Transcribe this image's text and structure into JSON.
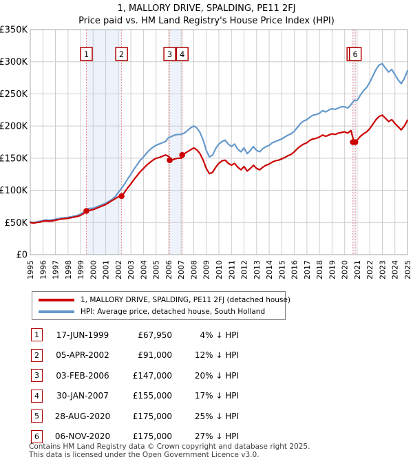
{
  "page": {
    "title": "1, MALLORY DRIVE, SPALDING, PE11 2FJ",
    "subtitle": "Price paid vs. HM Land Registry's House Price Index (HPI)",
    "footer_line1": "Contains HM Land Registry data © Crown copyright and database right 2025.",
    "footer_line2": "This data is licensed under the Open Government Licence v3.0."
  },
  "legend": {
    "items": [
      {
        "label": "1, MALLORY DRIVE, SPALDING, PE11 2FJ (detached house)",
        "color": "#cc0000"
      },
      {
        "label": "HPI: Average price, detached house, South Holland",
        "color": "#6699cc"
      }
    ]
  },
  "sale_table": {
    "rows": [
      {
        "n": "1",
        "date": "17-JUN-1999",
        "price": "£67,950",
        "hpi_diff": "4% ↓ HPI"
      },
      {
        "n": "2",
        "date": "05-APR-2002",
        "price": "£91,000",
        "hpi_diff": "12% ↓ HPI"
      },
      {
        "n": "3",
        "date": "03-FEB-2006",
        "price": "£147,000",
        "hpi_diff": "20% ↓ HPI"
      },
      {
        "n": "4",
        "date": "30-JAN-2007",
        "price": "£155,000",
        "hpi_diff": "17% ↓ HPI"
      },
      {
        "n": "5",
        "date": "28-AUG-2020",
        "price": "£175,000",
        "hpi_diff": "25% ↓ HPI"
      },
      {
        "n": "6",
        "date": "06-NOV-2020",
        "price": "£175,000",
        "hpi_diff": "27% ↓ HPI"
      }
    ]
  },
  "chart_data": {
    "type": "line",
    "title": "1, MALLORY DRIVE, SPALDING, PE11 2FJ",
    "subtitle": "Price paid vs. HM Land Registry's House Price Index (HPI)",
    "grid": true,
    "legend_position": "below",
    "x_axis": {
      "min": 1995,
      "max": 2025,
      "tick_labels": [
        "1995",
        "1996",
        "1997",
        "1998",
        "1999",
        "2000",
        "2001",
        "2002",
        "2003",
        "2004",
        "2005",
        "2006",
        "2007",
        "2008",
        "2009",
        "2010",
        "2011",
        "2012",
        "2013",
        "2014",
        "2015",
        "2016",
        "2017",
        "2018",
        "2019",
        "2020",
        "2021",
        "2022",
        "2023",
        "2024",
        "2025"
      ]
    },
    "y_axis": {
      "min": 0,
      "max_k": 350,
      "ticks_k": [
        0,
        50,
        100,
        150,
        200,
        250,
        300,
        350
      ],
      "tick_labels": [
        "£0",
        "£50K",
        "£100K",
        "£150K",
        "£200K",
        "£250K",
        "£300K",
        "£350K"
      ]
    },
    "series": [
      {
        "name": "HPI: Average price, detached house, South Holland",
        "color": "#6699cc",
        "x_start": 1995,
        "x_step": 0.25,
        "values_k": [
          51,
          50,
          51,
          52,
          53,
          54,
          53.5,
          54,
          55,
          56,
          57,
          57.5,
          58,
          59,
          60,
          61,
          63,
          66,
          71,
          72,
          72,
          74,
          76,
          78,
          80,
          83,
          86,
          90,
          97,
          103,
          110,
          118,
          125,
          133,
          140,
          147,
          152,
          158,
          163,
          167,
          170,
          172,
          174,
          176,
          182,
          184,
          186,
          187,
          187,
          189,
          193,
          197,
          200,
          197,
          190,
          178,
          162,
          152,
          155,
          165,
          172,
          176,
          178,
          172,
          168,
          172,
          164,
          160,
          166,
          157,
          162,
          168,
          162,
          160,
          165,
          168,
          170,
          174,
          176,
          178,
          180,
          183,
          186,
          188,
          192,
          198,
          204,
          208,
          210,
          214,
          217,
          218,
          220,
          224,
          222,
          225,
          227,
          226,
          228,
          230,
          230,
          228,
          233,
          240,
          240,
          248,
          255,
          260,
          268,
          278,
          288,
          295,
          297,
          290,
          284,
          288,
          280,
          272,
          266,
          274,
          286
        ]
      },
      {
        "name": "1, MALLORY DRIVE, SPALDING, PE11 2FJ (detached house)",
        "color": "#cc0000",
        "x_start": 1995,
        "x_step": 0.25,
        "values_k": [
          50,
          49,
          50,
          50.5,
          52,
          52.5,
          52,
          52.5,
          53.5,
          54.5,
          55.5,
          56,
          56.5,
          57.5,
          58.5,
          59.5,
          61,
          64,
          68,
          69,
          70,
          72,
          74,
          76,
          78,
          81,
          84,
          87,
          90,
          91,
          97,
          104,
          110,
          117,
          123,
          129,
          134,
          139,
          143,
          147,
          150,
          151,
          153,
          155,
          153,
          147,
          149,
          150,
          150,
          157,
          160,
          163,
          166,
          163,
          157,
          147,
          134,
          126,
          128,
          136,
          142,
          146,
          147,
          142,
          139,
          142,
          136,
          132,
          137,
          130,
          134,
          139,
          134,
          132,
          136,
          139,
          141,
          144,
          146,
          147,
          149,
          151,
          154,
          156,
          160,
          165,
          169,
          172,
          174,
          178,
          180,
          181,
          183,
          186,
          184,
          186,
          188,
          187,
          189,
          190,
          191,
          189,
          193,
          175,
          178,
          184,
          188,
          191,
          196,
          203,
          210,
          215,
          217,
          212,
          207,
          210,
          204,
          199,
          194,
          200,
          209
        ]
      }
    ],
    "sales": [
      {
        "n": "1",
        "x": 1999.46,
        "price_k": 67.95,
        "date": "17-JUN-1999"
      },
      {
        "n": "2",
        "x": 2002.26,
        "price_k": 91,
        "date": "05-APR-2002"
      },
      {
        "n": "3",
        "x": 2006.09,
        "price_k": 147,
        "date": "03-FEB-2006"
      },
      {
        "n": "4",
        "x": 2007.08,
        "price_k": 155,
        "date": "30-JAN-2007"
      },
      {
        "n": "5",
        "x": 2020.66,
        "price_k": 175,
        "date": "28-AUG-2020"
      },
      {
        "n": "6",
        "x": 2020.85,
        "price_k": 175,
        "date": "06-NOV-2020"
      }
    ],
    "shaded_periods": [
      [
        1999.46,
        2002.26
      ],
      [
        2006.09,
        2007.08
      ],
      [
        2020.66,
        2020.85
      ]
    ],
    "colors": {
      "price_line": "#cc0000",
      "hpi_line": "#6699cc",
      "sale_dot": "#cc0000",
      "sale_marker_border": "#b00000",
      "sale_dashed_line": "#ee8888",
      "ownership_band": "#edf2fb",
      "grid": "#cdcdcd",
      "plot_border": "#a9a9a9"
    }
  }
}
